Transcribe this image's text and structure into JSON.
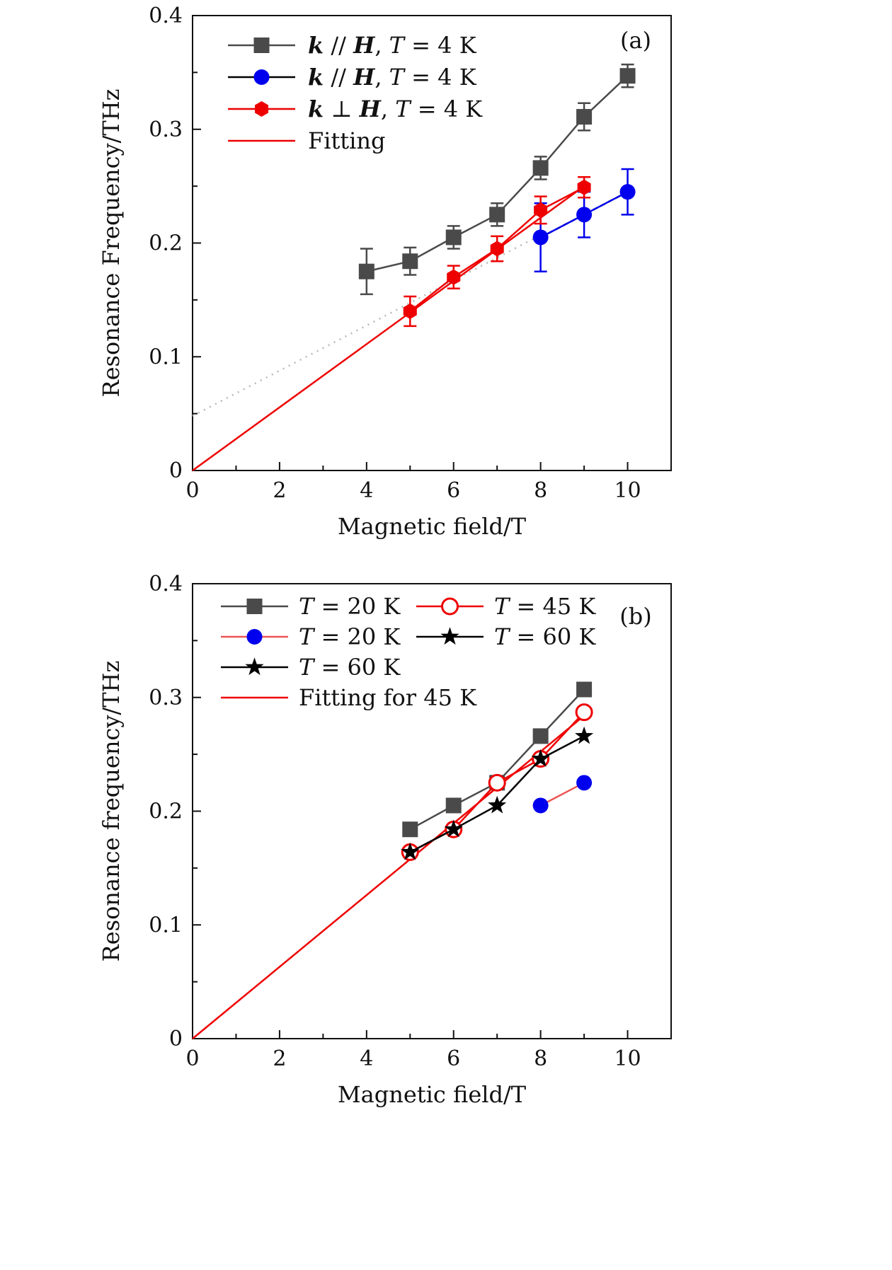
{
  "colors": {
    "gray": "#4a4a4a",
    "blue": "#0000ee",
    "red": "#ee0000",
    "black": "#000000",
    "dotted": "#b8b8b8"
  },
  "chart_data": [
    {
      "type": "scatter",
      "panel_label": "(a)",
      "xlabel": "Magnetic field/T",
      "ylabel": "Resonance Frequency/THz",
      "xlim": [
        0,
        11
      ],
      "ylim": [
        0,
        0.4
      ],
      "xticks": [
        0,
        2,
        4,
        6,
        8,
        10
      ],
      "xtick_labels": [
        "0",
        "2",
        "4",
        "6",
        "8",
        "10"
      ],
      "yticks": [
        0,
        0.1,
        0.2,
        0.3,
        0.4
      ],
      "ytick_labels": [
        "0",
        "0.1",
        "0.2",
        "0.3",
        "0.4"
      ],
      "legend_position": "top-left",
      "series": [
        {
          "name": "k // H, T = 4 K",
          "legend_parts": [
            {
              "t": "k",
              "s": "bi"
            },
            {
              "t": " // ",
              "s": ""
            },
            {
              "t": "H",
              "s": "bi"
            },
            {
              "t": ", ",
              "s": ""
            },
            {
              "t": "T",
              "s": "it"
            },
            {
              "t": " = 4 K",
              "s": ""
            }
          ],
          "marker": "square",
          "color": "#4a4a4a",
          "line": "solid",
          "x": [
            4,
            5,
            6,
            7,
            8,
            9,
            10
          ],
          "y": [
            0.175,
            0.184,
            0.205,
            0.225,
            0.266,
            0.311,
            0.347
          ],
          "err": [
            0.02,
            0.012,
            0.01,
            0.01,
            0.01,
            0.012,
            0.01
          ]
        },
        {
          "name": "k // H, T = 4 K",
          "legend_parts": [
            {
              "t": "k",
              "s": "bi"
            },
            {
              "t": " // ",
              "s": ""
            },
            {
              "t": "H",
              "s": "bi"
            },
            {
              "t": ", ",
              "s": ""
            },
            {
              "t": "T",
              "s": "it"
            },
            {
              "t": " = 4 K",
              "s": ""
            }
          ],
          "marker": "circle",
          "color": "#0000ee",
          "line": "solid",
          "legend_line_color": "#000000",
          "x": [
            8,
            9,
            10
          ],
          "y": [
            0.205,
            0.225,
            0.245
          ],
          "err": [
            0.03,
            0.02,
            0.02
          ]
        },
        {
          "name": "k ⊥ H, T = 4 K",
          "legend_parts": [
            {
              "t": "k",
              "s": "bi"
            },
            {
              "t": " ⊥ ",
              "s": ""
            },
            {
              "t": "H",
              "s": "bi"
            },
            {
              "t": ", ",
              "s": ""
            },
            {
              "t": "T",
              "s": "it"
            },
            {
              "t": " = 4 K",
              "s": ""
            }
          ],
          "marker": "hexagon",
          "color": "#ee0000",
          "line": "solid",
          "x": [
            5,
            6,
            7,
            8,
            9
          ],
          "y": [
            0.14,
            0.17,
            0.195,
            0.229,
            0.249
          ],
          "err": [
            0.013,
            0.01,
            0.011,
            0.012,
            0.009
          ]
        },
        {
          "name": "Fitting",
          "legend_parts": [
            {
              "t": "Fitting",
              "s": ""
            }
          ],
          "marker": "none",
          "color": "#ee0000",
          "line": "solid",
          "x": [
            0,
            9
          ],
          "y": [
            0,
            0.25
          ]
        }
      ],
      "guide_lines": [
        {
          "style": "dotted",
          "color": "#b8b8b8",
          "x": [
            0,
            8
          ],
          "y": [
            0.048,
            0.207
          ]
        },
        {
          "style": "dashed",
          "color": "#000000",
          "x": [
            8,
            10
          ],
          "y": [
            0.205,
            0.245
          ]
        }
      ]
    },
    {
      "type": "scatter",
      "panel_label": "(b)",
      "xlabel": "Magnetic field/T",
      "ylabel": "Resonance frequency/THz",
      "xlim": [
        0,
        11
      ],
      "ylim": [
        0,
        0.4
      ],
      "xticks": [
        0,
        2,
        4,
        6,
        8,
        10
      ],
      "xtick_labels": [
        "0",
        "2",
        "4",
        "6",
        "8",
        "10"
      ],
      "yticks": [
        0,
        0.1,
        0.2,
        0.3,
        0.4
      ],
      "ytick_labels": [
        "0",
        "0.1",
        "0.2",
        "0.3",
        "0.4"
      ],
      "legend_position": "top-left",
      "series": [
        {
          "name": "T = 20 K",
          "legend_parts": [
            {
              "t": "T",
              "s": "it"
            },
            {
              "t": " = 20 K",
              "s": ""
            }
          ],
          "marker": "square",
          "color": "#4a4a4a",
          "line": "solid",
          "x": [
            5,
            6,
            7,
            8,
            9
          ],
          "y": [
            0.184,
            0.205,
            0.225,
            0.266,
            0.307
          ]
        },
        {
          "name": "T = 20 K",
          "legend_parts": [
            {
              "t": "T",
              "s": "it"
            },
            {
              "t": " = 20 K",
              "s": ""
            }
          ],
          "marker": "circle",
          "color": "#0000ee",
          "line": "solid",
          "line_color": "#ee5555",
          "x": [
            8,
            9
          ],
          "y": [
            0.205,
            0.225
          ]
        },
        {
          "name": "T = 60 K",
          "legend_parts": [
            {
              "t": "T",
              "s": "it"
            },
            {
              "t": " = 60 K",
              "s": ""
            }
          ],
          "marker": "star",
          "color": "#000000",
          "line": "solid",
          "legend_only": true,
          "x": [],
          "y": []
        },
        {
          "name": "Fitting for 45 K",
          "legend_parts": [
            {
              "t": "Fitting for 45 K",
              "s": ""
            }
          ],
          "marker": "none",
          "color": "#ee0000",
          "line": "solid",
          "x": [
            0,
            9
          ],
          "y": [
            0,
            0.284
          ]
        },
        {
          "name": "T = 45 K",
          "legend_parts": [
            {
              "t": "T",
              "s": "it"
            },
            {
              "t": " = 45 K",
              "s": ""
            }
          ],
          "marker": "open-circle",
          "color": "#ee0000",
          "line": "solid",
          "x": [
            5,
            6,
            7,
            8,
            9
          ],
          "y": [
            0.164,
            0.184,
            0.225,
            0.246,
            0.287
          ]
        },
        {
          "name": "T = 60 K",
          "legend_parts": [
            {
              "t": "T",
              "s": "it"
            },
            {
              "t": " = 60 K",
              "s": ""
            }
          ],
          "marker": "star",
          "color": "#000000",
          "line": "solid",
          "x": [
            5,
            6,
            7,
            8,
            9
          ],
          "y": [
            0.164,
            0.184,
            0.205,
            0.246,
            0.266
          ]
        }
      ]
    }
  ]
}
